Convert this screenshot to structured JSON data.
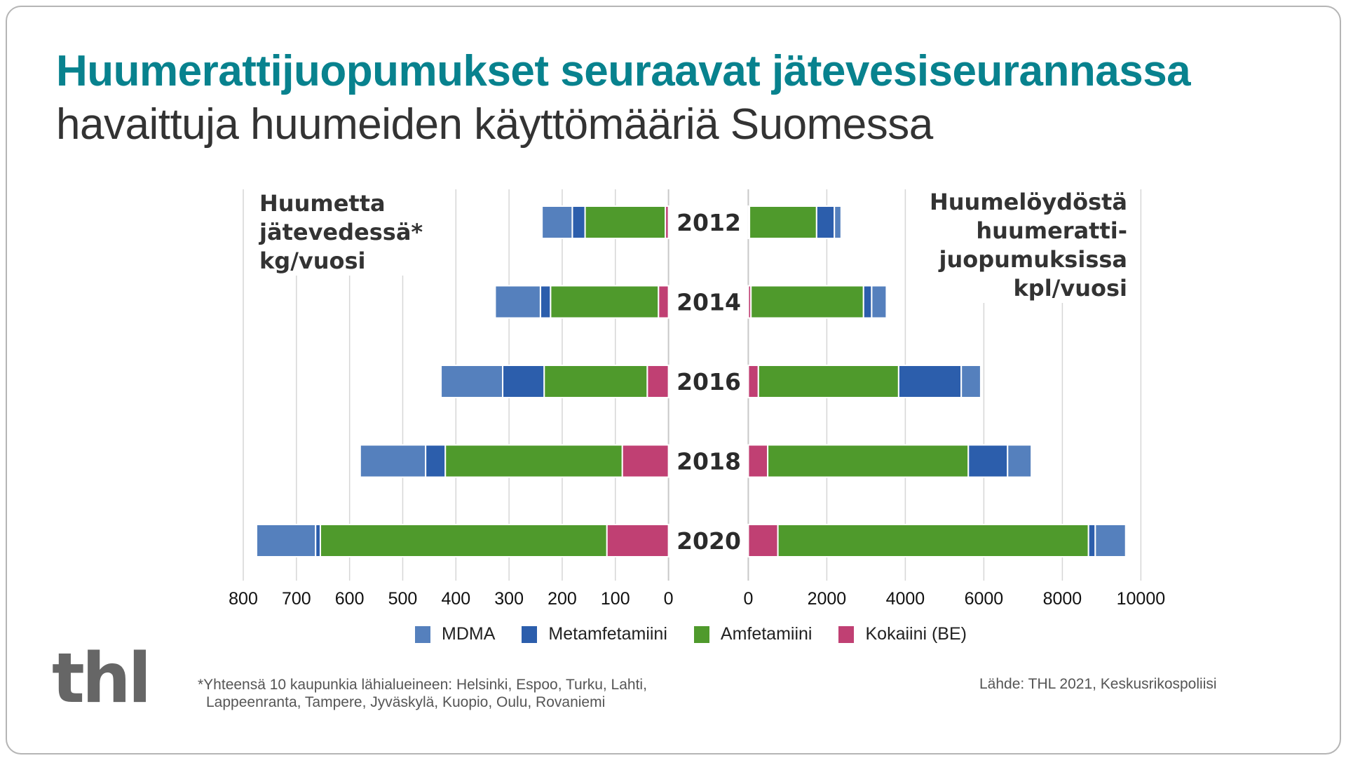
{
  "title": "Huumerattijuopumukset seuraavat jätevesiseurannassa",
  "subtitle": "havaittuja huumeiden käyttömääriä Suomessa",
  "colors": {
    "title": "#08828e",
    "MDMA": "#5580bd",
    "Metamfetamiini": "#2c5eac",
    "Amfetamiini": "#4f9a2c",
    "Kokaiini (BE)": "#c04073"
  },
  "legend": [
    {
      "label": "MDMA",
      "color": "#5580bd"
    },
    {
      "label": "Metamfetamiini",
      "color": "#2c5eac"
    },
    {
      "label": "Amfetamiini",
      "color": "#4f9a2c"
    },
    {
      "label": "Kokaiini (BE)",
      "color": "#c04073"
    }
  ],
  "left_panel": {
    "title_lines": [
      "Huumetta",
      "jätevedessä*",
      "kg/vuosi"
    ]
  },
  "right_panel": {
    "title_lines": [
      "Huumelöydöstä",
      "huumeratti-",
      "juopumuksissa",
      "kpl/vuosi"
    ]
  },
  "footnote": {
    "line1": "*Yhteensä 10 kaupunkia lähialueineen: Helsinki, Espoo, Turku, Lahti,",
    "line2": "Lappeenranta, Tampere, Jyväskylä, Kuopio, Oulu, Rovaniemi"
  },
  "source": "Lähde: THL 2021, Keskusrikospoliisi",
  "logo": "thl",
  "chart_data": [
    {
      "type": "bar",
      "orientation": "horizontal",
      "stacked": true,
      "direction": "right-to-left",
      "title": "Huumetta jätevedessä* kg/vuosi",
      "categories": [
        "2012",
        "2014",
        "2016",
        "2018",
        "2020"
      ],
      "series": [
        {
          "name": "Kokaiini (BE)",
          "values": [
            6,
            19,
            40,
            87,
            116
          ]
        },
        {
          "name": "Amfetamiini",
          "values": [
            151,
            203,
            194,
            333,
            539
          ]
        },
        {
          "name": "Metamfetamiini",
          "values": [
            24,
            19,
            78,
            37,
            9
          ]
        },
        {
          "name": "MDMA",
          "values": [
            57,
            85,
            116,
            123,
            111
          ]
        }
      ],
      "xlim": [
        0,
        800
      ],
      "xticks": [
        "800",
        "700",
        "600",
        "500",
        "400",
        "300",
        "200",
        "100",
        "0"
      ],
      "xtick_values": [
        800,
        700,
        600,
        500,
        400,
        300,
        200,
        100,
        0
      ],
      "grid": true,
      "legend": "bottom"
    },
    {
      "type": "bar",
      "orientation": "horizontal",
      "stacked": true,
      "direction": "left-to-right",
      "title": "Huumelöydöstä huumerattijuopumuksissa kpl/vuosi",
      "categories": [
        "2012",
        "2014",
        "2016",
        "2018",
        "2020"
      ],
      "series": [
        {
          "name": "Kokaiini (BE)",
          "values": [
            30,
            68,
            257,
            495,
            754
          ]
        },
        {
          "name": "Amfetamiini",
          "values": [
            1710,
            2867,
            3573,
            5110,
            7912
          ]
        },
        {
          "name": "Metamfetamiini",
          "values": [
            453,
            208,
            1595,
            1000,
            172
          ]
        },
        {
          "name": "MDMA",
          "values": [
            172,
            375,
            495,
            605,
            775
          ]
        }
      ],
      "xlim": [
        0,
        10000
      ],
      "xticks": [
        "0",
        "2000",
        "4000",
        "6000",
        "8000",
        "10000"
      ],
      "xtick_values": [
        0,
        2000,
        4000,
        6000,
        8000,
        10000
      ],
      "grid": true,
      "legend": "bottom"
    }
  ]
}
